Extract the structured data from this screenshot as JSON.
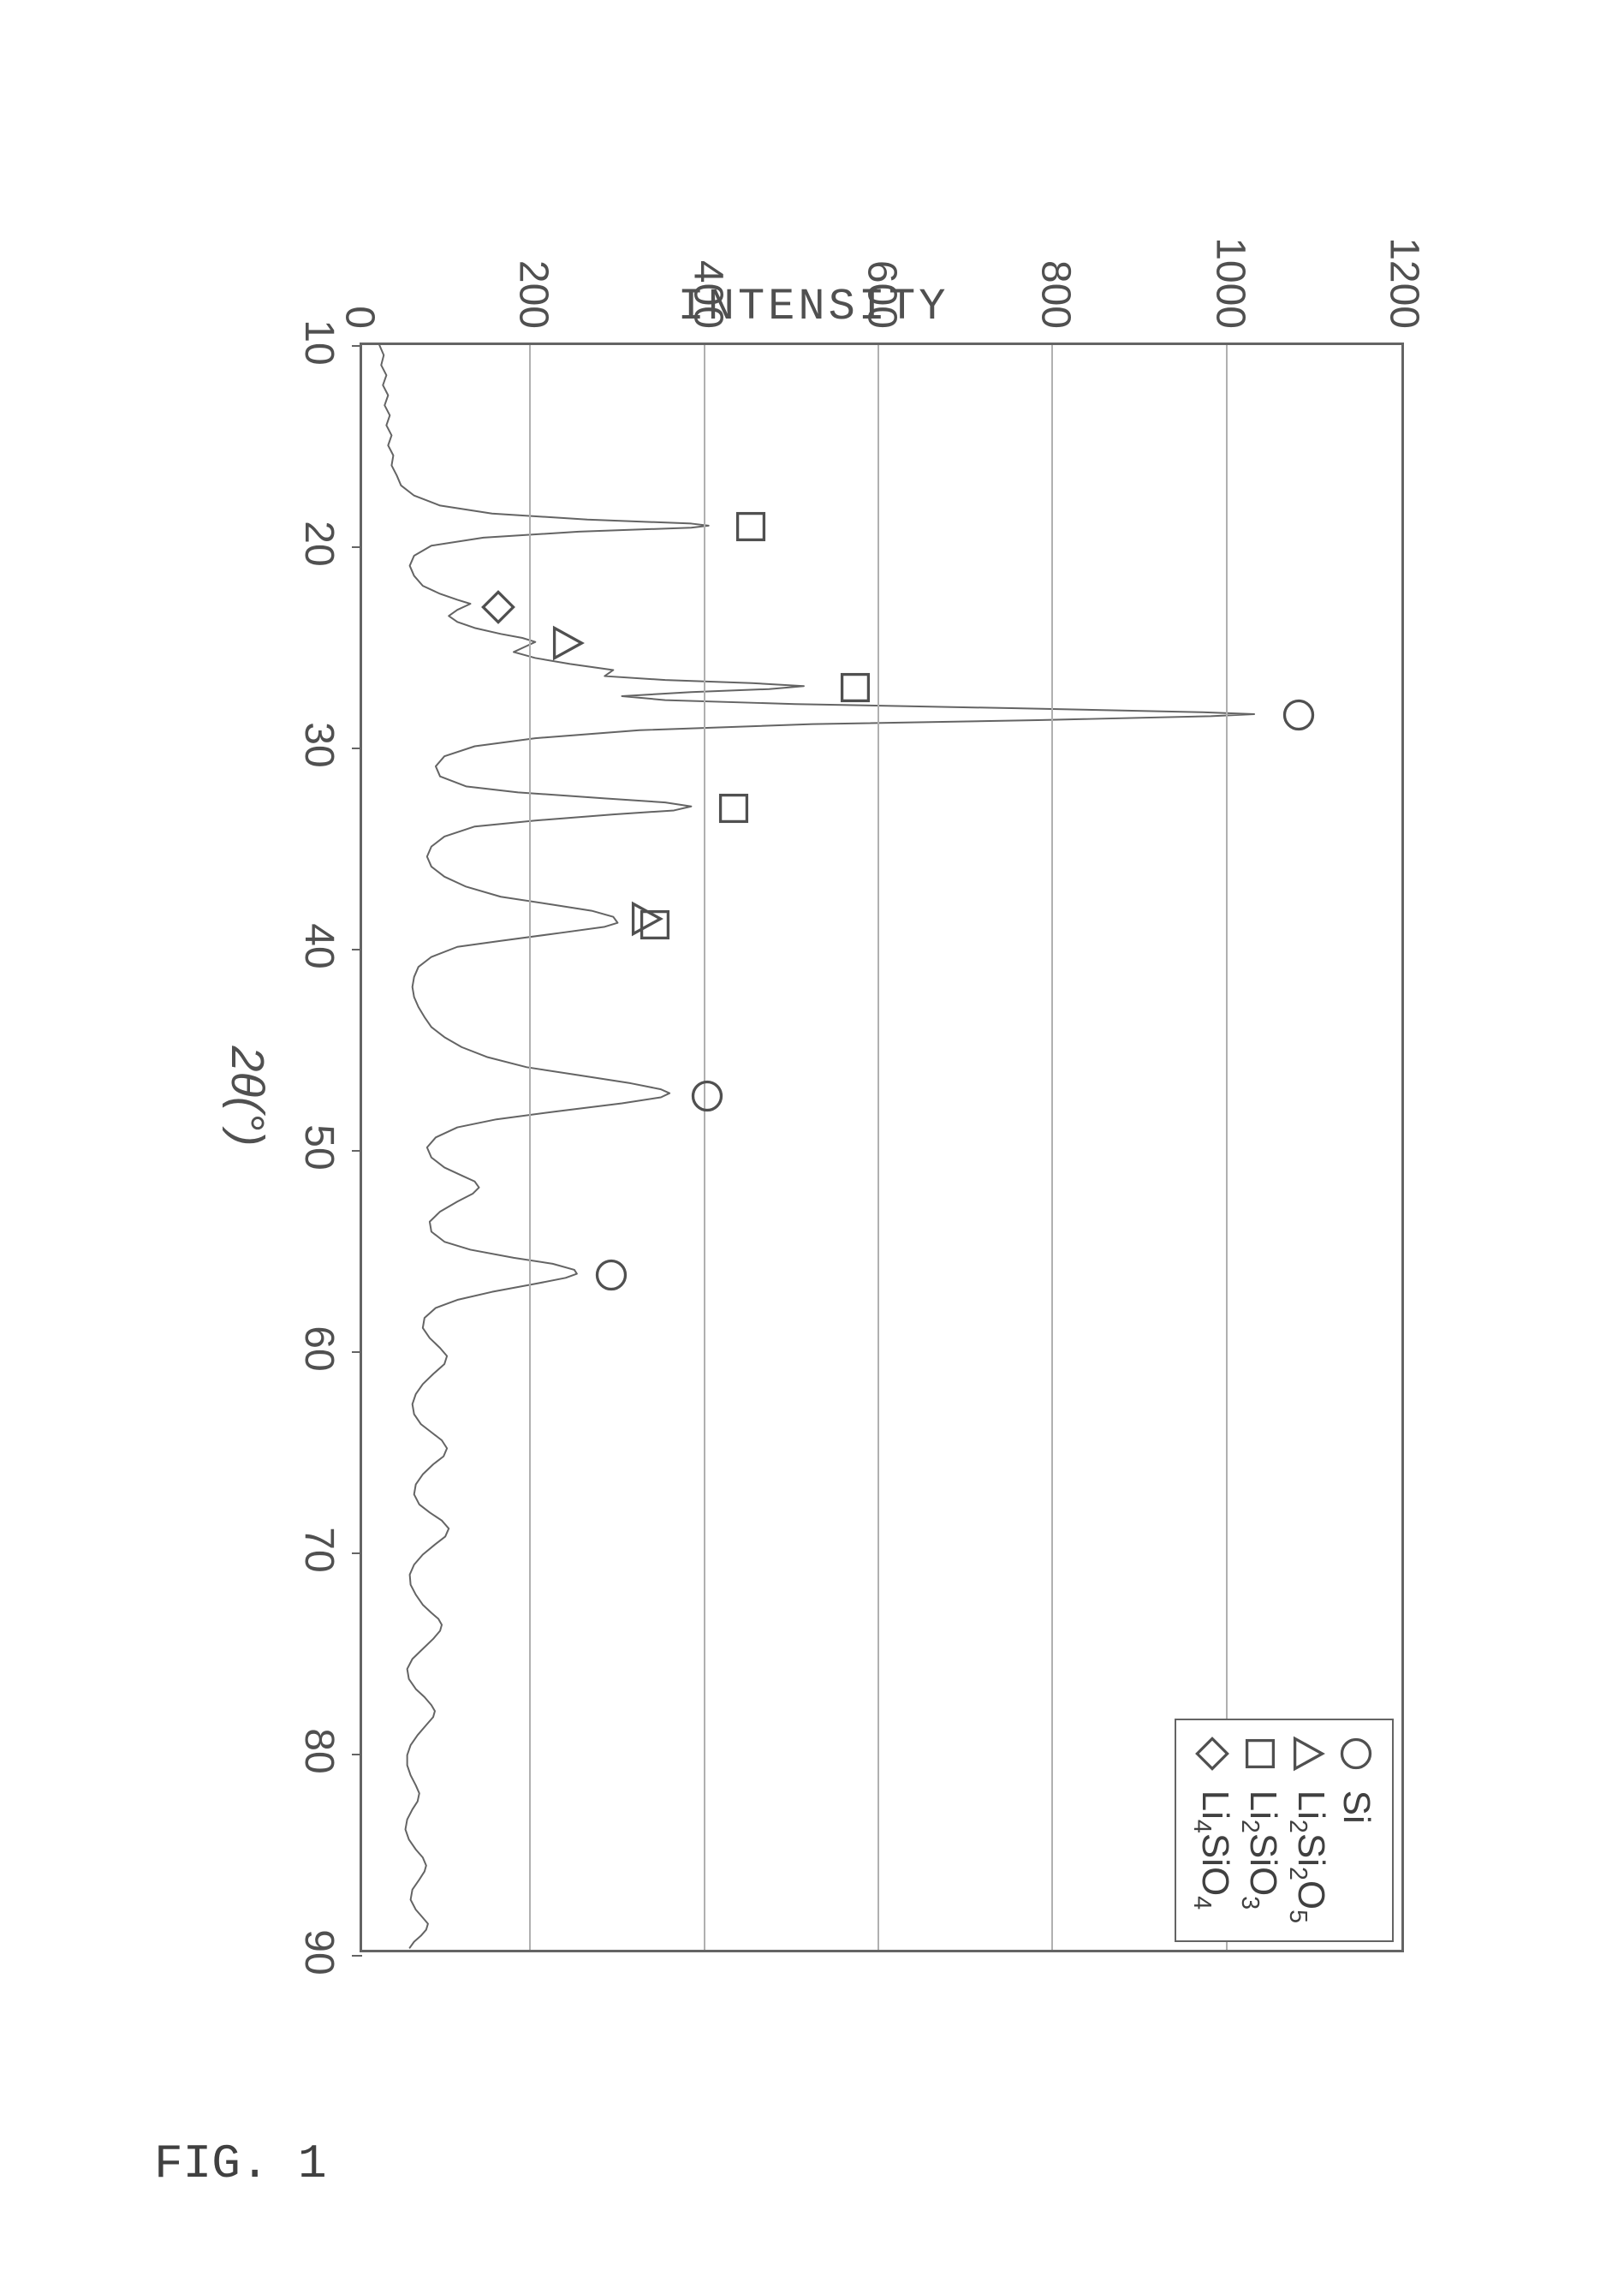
{
  "figure": {
    "caption": "FIG. 1",
    "y_axis_title": "INTENSITY",
    "x_axis_title": "2θ(°)",
    "type": "line",
    "xlim": [
      10,
      90
    ],
    "ylim": [
      0,
      1200
    ],
    "xtick_step": 10,
    "ytick_step": 200,
    "xticks": [
      10,
      20,
      30,
      40,
      50,
      60,
      70,
      80,
      90
    ],
    "yticks": [
      0,
      200,
      400,
      600,
      800,
      1000,
      1200
    ],
    "line_color": "#646464",
    "line_width": 2,
    "grid_color": "#b0b0b0",
    "frame_color": "#646464",
    "background_color": "#ffffff",
    "label_color": "#505050",
    "label_fontsize": 48,
    "axis_title_fontsize": 52,
    "legend": {
      "position": "top-right",
      "border_color": "#646464",
      "items": [
        {
          "symbol": "circle",
          "label_html": "Si",
          "label": "Si"
        },
        {
          "symbol": "triangle",
          "label_html": "Li<sub>2</sub>Si<sub>2</sub>O<sub>5</sub>",
          "label": "Li2Si2O5"
        },
        {
          "symbol": "square",
          "label_html": "Li<sub>2</sub>SiO<sub>3</sub>",
          "label": "Li2SiO3"
        },
        {
          "symbol": "diamond",
          "label_html": "Li<sub>4</sub>SiO<sub>4</sub>",
          "label": "Li4SiO4"
        }
      ]
    },
    "peak_markers": [
      {
        "x": 19.0,
        "y": 420,
        "symbol": "square"
      },
      {
        "x": 23.0,
        "y": 130,
        "symbol": "diamond"
      },
      {
        "x": 24.8,
        "y": 210,
        "symbol": "triangle"
      },
      {
        "x": 27.0,
        "y": 540,
        "symbol": "square"
      },
      {
        "x": 28.4,
        "y": 1050,
        "symbol": "circle"
      },
      {
        "x": 33.0,
        "y": 400,
        "symbol": "square"
      },
      {
        "x": 38.5,
        "y": 300,
        "symbol": "triangle"
      },
      {
        "x": 38.8,
        "y": 310,
        "symbol": "square"
      },
      {
        "x": 47.3,
        "y": 370,
        "symbol": "circle"
      },
      {
        "x": 56.2,
        "y": 260,
        "symbol": "circle"
      }
    ],
    "spectrum": [
      [
        10.0,
        20
      ],
      [
        10.5,
        25
      ],
      [
        11.0,
        22
      ],
      [
        11.5,
        28
      ],
      [
        12.0,
        24
      ],
      [
        12.5,
        30
      ],
      [
        13.0,
        26
      ],
      [
        13.5,
        32
      ],
      [
        14.0,
        28
      ],
      [
        14.5,
        34
      ],
      [
        15.0,
        30
      ],
      [
        15.5,
        36
      ],
      [
        16.0,
        34
      ],
      [
        16.5,
        40
      ],
      [
        17.0,
        45
      ],
      [
        17.5,
        60
      ],
      [
        18.0,
        90
      ],
      [
        18.4,
        150
      ],
      [
        18.7,
        260
      ],
      [
        18.9,
        380
      ],
      [
        19.0,
        400
      ],
      [
        19.1,
        380
      ],
      [
        19.3,
        250
      ],
      [
        19.6,
        140
      ],
      [
        20.0,
        80
      ],
      [
        20.5,
        60
      ],
      [
        21.0,
        55
      ],
      [
        21.5,
        60
      ],
      [
        22.0,
        70
      ],
      [
        22.4,
        90
      ],
      [
        22.7,
        110
      ],
      [
        22.9,
        125
      ],
      [
        23.0,
        120
      ],
      [
        23.2,
        110
      ],
      [
        23.5,
        100
      ],
      [
        23.8,
        110
      ],
      [
        24.1,
        130
      ],
      [
        24.4,
        160
      ],
      [
        24.6,
        185
      ],
      [
        24.8,
        200
      ],
      [
        25.0,
        190
      ],
      [
        25.3,
        175
      ],
      [
        25.6,
        200
      ],
      [
        25.9,
        240
      ],
      [
        26.2,
        290
      ],
      [
        26.5,
        280
      ],
      [
        26.7,
        350
      ],
      [
        26.85,
        450
      ],
      [
        27.0,
        510
      ],
      [
        27.15,
        470
      ],
      [
        27.3,
        380
      ],
      [
        27.5,
        300
      ],
      [
        27.7,
        350
      ],
      [
        27.9,
        500
      ],
      [
        28.1,
        750
      ],
      [
        28.3,
        970
      ],
      [
        28.4,
        1030
      ],
      [
        28.5,
        980
      ],
      [
        28.7,
        780
      ],
      [
        28.9,
        520
      ],
      [
        29.2,
        320
      ],
      [
        29.6,
        200
      ],
      [
        30.0,
        130
      ],
      [
        30.5,
        95
      ],
      [
        31.0,
        85
      ],
      [
        31.5,
        90
      ],
      [
        32.0,
        120
      ],
      [
        32.3,
        180
      ],
      [
        32.6,
        280
      ],
      [
        32.8,
        350
      ],
      [
        33.0,
        380
      ],
      [
        33.2,
        360
      ],
      [
        33.4,
        290
      ],
      [
        33.7,
        200
      ],
      [
        34.0,
        130
      ],
      [
        34.5,
        95
      ],
      [
        35.0,
        80
      ],
      [
        35.5,
        75
      ],
      [
        36.0,
        80
      ],
      [
        36.5,
        95
      ],
      [
        37.0,
        120
      ],
      [
        37.5,
        160
      ],
      [
        37.9,
        220
      ],
      [
        38.2,
        265
      ],
      [
        38.5,
        290
      ],
      [
        38.8,
        295
      ],
      [
        39.0,
        280
      ],
      [
        39.3,
        230
      ],
      [
        39.7,
        160
      ],
      [
        40.0,
        110
      ],
      [
        40.5,
        80
      ],
      [
        41.0,
        65
      ],
      [
        41.5,
        60
      ],
      [
        42.0,
        58
      ],
      [
        42.5,
        60
      ],
      [
        43.0,
        65
      ],
      [
        43.5,
        72
      ],
      [
        44.0,
        80
      ],
      [
        44.5,
        95
      ],
      [
        45.0,
        115
      ],
      [
        45.5,
        145
      ],
      [
        46.0,
        190
      ],
      [
        46.4,
        250
      ],
      [
        46.8,
        310
      ],
      [
        47.1,
        345
      ],
      [
        47.3,
        355
      ],
      [
        47.5,
        345
      ],
      [
        47.8,
        300
      ],
      [
        48.2,
        225
      ],
      [
        48.6,
        155
      ],
      [
        49.0,
        110
      ],
      [
        49.5,
        85
      ],
      [
        50.0,
        75
      ],
      [
        50.5,
        80
      ],
      [
        51.0,
        95
      ],
      [
        51.4,
        115
      ],
      [
        51.7,
        130
      ],
      [
        52.0,
        135
      ],
      [
        52.3,
        128
      ],
      [
        52.7,
        110
      ],
      [
        53.2,
        90
      ],
      [
        53.7,
        78
      ],
      [
        54.2,
        80
      ],
      [
        54.7,
        95
      ],
      [
        55.1,
        125
      ],
      [
        55.5,
        175
      ],
      [
        55.8,
        220
      ],
      [
        56.1,
        245
      ],
      [
        56.3,
        248
      ],
      [
        56.5,
        235
      ],
      [
        56.8,
        200
      ],
      [
        57.2,
        150
      ],
      [
        57.6,
        110
      ],
      [
        58.0,
        85
      ],
      [
        58.5,
        72
      ],
      [
        59.0,
        70
      ],
      [
        59.5,
        78
      ],
      [
        60.0,
        90
      ],
      [
        60.4,
        98
      ],
      [
        60.8,
        95
      ],
      [
        61.3,
        82
      ],
      [
        61.8,
        70
      ],
      [
        62.3,
        62
      ],
      [
        62.8,
        58
      ],
      [
        63.3,
        60
      ],
      [
        63.8,
        68
      ],
      [
        64.2,
        80
      ],
      [
        64.6,
        92
      ],
      [
        65.0,
        98
      ],
      [
        65.4,
        94
      ],
      [
        65.8,
        82
      ],
      [
        66.3,
        70
      ],
      [
        66.8,
        62
      ],
      [
        67.3,
        60
      ],
      [
        67.8,
        66
      ],
      [
        68.2,
        78
      ],
      [
        68.6,
        92
      ],
      [
        69.0,
        100
      ],
      [
        69.4,
        96
      ],
      [
        69.8,
        84
      ],
      [
        70.3,
        70
      ],
      [
        70.8,
        60
      ],
      [
        71.3,
        55
      ],
      [
        71.8,
        56
      ],
      [
        72.3,
        62
      ],
      [
        72.8,
        70
      ],
      [
        73.2,
        80
      ],
      [
        73.5,
        88
      ],
      [
        73.8,
        92
      ],
      [
        74.1,
        90
      ],
      [
        74.5,
        82
      ],
      [
        75.0,
        70
      ],
      [
        75.5,
        58
      ],
      [
        76.0,
        52
      ],
      [
        76.5,
        54
      ],
      [
        77.0,
        62
      ],
      [
        77.4,
        72
      ],
      [
        77.8,
        80
      ],
      [
        78.1,
        84
      ],
      [
        78.4,
        82
      ],
      [
        78.8,
        74
      ],
      [
        79.3,
        64
      ],
      [
        79.8,
        56
      ],
      [
        80.3,
        52
      ],
      [
        80.8,
        52
      ],
      [
        81.3,
        56
      ],
      [
        81.8,
        62
      ],
      [
        82.2,
        66
      ],
      [
        82.6,
        64
      ],
      [
        83.0,
        58
      ],
      [
        83.5,
        52
      ],
      [
        84.0,
        50
      ],
      [
        84.5,
        54
      ],
      [
        85.0,
        62
      ],
      [
        85.4,
        70
      ],
      [
        85.8,
        74
      ],
      [
        86.1,
        72
      ],
      [
        86.5,
        66
      ],
      [
        87.0,
        58
      ],
      [
        87.5,
        56
      ],
      [
        88.0,
        62
      ],
      [
        88.4,
        70
      ],
      [
        88.7,
        76
      ],
      [
        89.0,
        74
      ],
      [
        89.3,
        68
      ],
      [
        89.6,
        60
      ],
      [
        89.9,
        55
      ]
    ]
  }
}
